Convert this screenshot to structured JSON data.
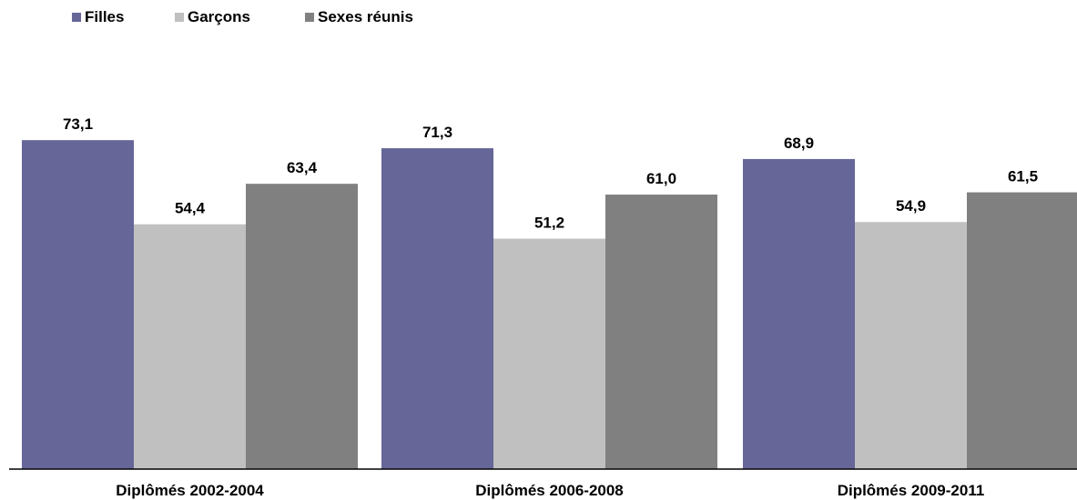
{
  "chart_data": {
    "type": "bar",
    "categories": [
      "Diplômés 2002-2004",
      "Diplômés 2006-2008",
      "Diplômés 2009-2011"
    ],
    "series": [
      {
        "name": "Filles",
        "values": [
          73.1,
          71.3,
          68.9
        ],
        "value_labels": [
          "73,1",
          "71,3",
          "68,9"
        ],
        "color": "#666699"
      },
      {
        "name": "Garçons",
        "values": [
          54.4,
          51.2,
          54.9
        ],
        "value_labels": [
          "54,4",
          "51,2",
          "54,9"
        ],
        "color": "#c0c0c0"
      },
      {
        "name": "Sexes réunis",
        "values": [
          63.4,
          61.0,
          61.5
        ],
        "value_labels": [
          "63,4",
          "61,0",
          "61,5"
        ],
        "color": "#808080"
      }
    ],
    "ylim": [
      0,
      100
    ],
    "grid": false,
    "legend_position": "top-left"
  }
}
